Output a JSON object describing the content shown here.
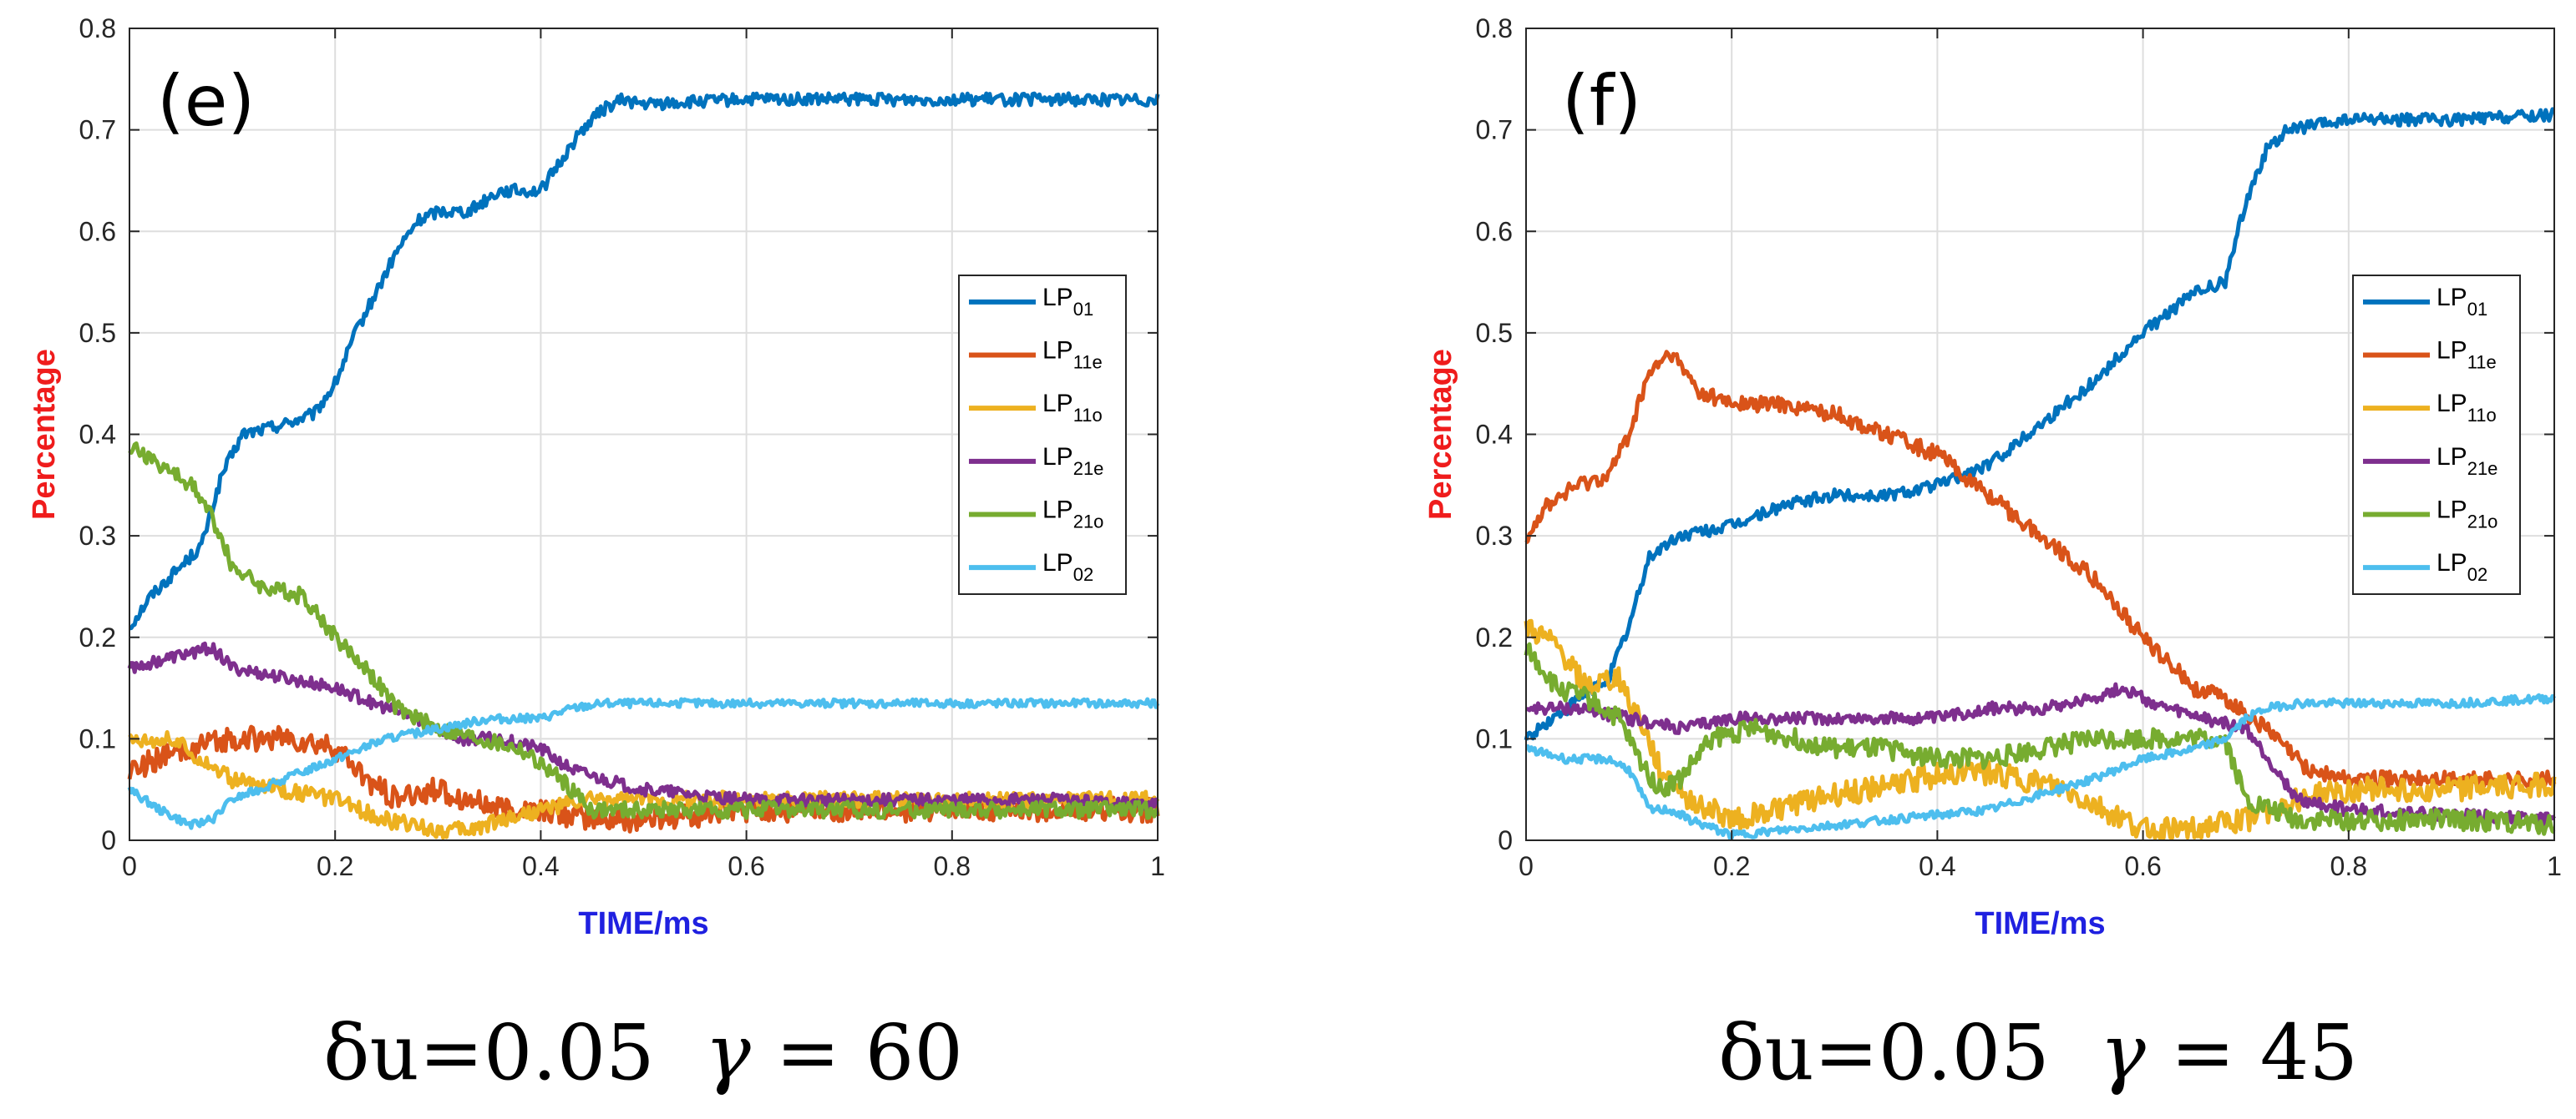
{
  "figure_title": "",
  "chart_data": [
    {
      "type": "line",
      "panel_label": "(e)",
      "xlabel": "TIME/ms",
      "ylabel": "Percentage",
      "xlabel_color": "#1f20e0",
      "ylabel_color": "#ef1c1c",
      "xlim": [
        0,
        1
      ],
      "ylim": [
        0,
        0.8
      ],
      "x_ticks": [
        0,
        0.2,
        0.4,
        0.6,
        0.8,
        1
      ],
      "x_tick_labels": [
        "0",
        "0.2",
        "0.4",
        "0.6",
        "0.8",
        "1"
      ],
      "y_ticks": [
        0,
        0.1,
        0.2,
        0.3,
        0.4,
        0.5,
        0.6,
        0.7,
        0.8
      ],
      "y_tick_labels": [
        "0",
        "0.1",
        "0.2",
        "0.3",
        "0.4",
        "0.5",
        "0.6",
        "0.7",
        "0.8"
      ],
      "grid": true,
      "legend_position": "right-middle",
      "caption": {
        "prefix": "δu=0.05",
        "gamma": "γ",
        "equals": "=",
        "value": "60"
      },
      "series": [
        {
          "name": "LP",
          "sub": "01",
          "color": "#0072bd",
          "x": [
            0,
            0.02,
            0.05,
            0.07,
            0.09,
            0.11,
            0.15,
            0.18,
            0.2,
            0.22,
            0.24,
            0.26,
            0.28,
            0.3,
            0.33,
            0.36,
            0.38,
            0.4,
            0.42,
            0.44,
            0.46,
            0.48,
            0.5,
            0.6,
            0.7,
            0.8,
            0.9,
            1
          ],
          "y": [
            0.21,
            0.24,
            0.27,
            0.29,
            0.36,
            0.4,
            0.41,
            0.42,
            0.45,
            0.5,
            0.54,
            0.58,
            0.61,
            0.62,
            0.62,
            0.64,
            0.64,
            0.64,
            0.67,
            0.7,
            0.72,
            0.73,
            0.725,
            0.73,
            0.73,
            0.73,
            0.73,
            0.73
          ],
          "noise": 0.006
        },
        {
          "name": "LP",
          "sub": "11e",
          "color": "#d95319",
          "x": [
            0,
            0.03,
            0.06,
            0.1,
            0.15,
            0.2,
            0.23,
            0.26,
            0.3,
            0.33,
            0.36,
            0.4,
            0.45,
            0.5,
            0.6,
            0.7,
            0.8,
            0.9,
            1
          ],
          "y": [
            0.07,
            0.08,
            0.09,
            0.1,
            0.1,
            0.09,
            0.06,
            0.04,
            0.05,
            0.04,
            0.03,
            0.03,
            0.02,
            0.02,
            0.03,
            0.03,
            0.03,
            0.03,
            0.03
          ],
          "noise": 0.012
        },
        {
          "name": "LP",
          "sub": "11o",
          "color": "#edb120",
          "x": [
            0,
            0.04,
            0.07,
            0.1,
            0.15,
            0.2,
            0.25,
            0.3,
            0.33,
            0.36,
            0.4,
            0.45,
            0.5,
            0.6,
            0.7,
            0.8,
            0.9,
            1
          ],
          "y": [
            0.1,
            0.1,
            0.08,
            0.06,
            0.05,
            0.04,
            0.02,
            0.01,
            0.01,
            0.02,
            0.03,
            0.04,
            0.04,
            0.04,
            0.04,
            0.04,
            0.04,
            0.04
          ],
          "noise": 0.008
        },
        {
          "name": "LP",
          "sub": "21e",
          "color": "#7e2f8e",
          "x": [
            0,
            0.04,
            0.08,
            0.1,
            0.15,
            0.2,
            0.25,
            0.28,
            0.32,
            0.36,
            0.4,
            0.43,
            0.46,
            0.5,
            0.6,
            0.7,
            0.8,
            0.9,
            1
          ],
          "y": [
            0.17,
            0.18,
            0.19,
            0.17,
            0.16,
            0.15,
            0.13,
            0.12,
            0.1,
            0.1,
            0.09,
            0.07,
            0.06,
            0.05,
            0.04,
            0.04,
            0.04,
            0.04,
            0.035
          ],
          "noise": 0.006
        },
        {
          "name": "LP",
          "sub": "21o",
          "color": "#77ac30",
          "x": [
            0,
            0.03,
            0.06,
            0.08,
            0.1,
            0.13,
            0.17,
            0.2,
            0.23,
            0.26,
            0.3,
            0.34,
            0.38,
            0.42,
            0.45,
            0.5,
            0.6,
            0.7,
            0.8,
            0.9,
            1
          ],
          "y": [
            0.39,
            0.37,
            0.35,
            0.32,
            0.27,
            0.25,
            0.24,
            0.2,
            0.17,
            0.13,
            0.11,
            0.1,
            0.09,
            0.06,
            0.03,
            0.03,
            0.03,
            0.03,
            0.03,
            0.03,
            0.03
          ],
          "noise": 0.008
        },
        {
          "name": "LP",
          "sub": "02",
          "color": "#4dbeee",
          "x": [
            0,
            0.03,
            0.06,
            0.08,
            0.1,
            0.15,
            0.2,
            0.25,
            0.3,
            0.35,
            0.4,
            0.43,
            0.46,
            0.5,
            0.6,
            0.7,
            0.8,
            0.9,
            1
          ],
          "y": [
            0.05,
            0.03,
            0.015,
            0.02,
            0.04,
            0.06,
            0.08,
            0.1,
            0.11,
            0.12,
            0.12,
            0.13,
            0.135,
            0.135,
            0.135,
            0.135,
            0.135,
            0.135,
            0.135
          ],
          "noise": 0.004
        }
      ]
    },
    {
      "type": "line",
      "panel_label": "(f)",
      "xlabel": "TIME/ms",
      "ylabel": "Percentage",
      "xlabel_color": "#1f20e0",
      "ylabel_color": "#ef1c1c",
      "xlim": [
        0,
        1
      ],
      "ylim": [
        0,
        0.8
      ],
      "x_ticks": [
        0,
        0.2,
        0.4,
        0.6,
        0.8,
        1
      ],
      "x_tick_labels": [
        "0",
        "0.2",
        "0.4",
        "0.6",
        "0.8",
        "1"
      ],
      "y_ticks": [
        0,
        0.1,
        0.2,
        0.3,
        0.4,
        0.5,
        0.6,
        0.7,
        0.8
      ],
      "y_tick_labels": [
        "0",
        "0.1",
        "0.2",
        "0.3",
        "0.4",
        "0.5",
        "0.6",
        "0.7",
        "0.8"
      ],
      "grid": true,
      "legend_position": "right-middle",
      "caption": {
        "prefix": "δu=0.05",
        "gamma": "γ",
        "equals": "=",
        "value": "45"
      },
      "series": [
        {
          "name": "LP",
          "sub": "01",
          "color": "#0072bd",
          "x": [
            0,
            0.04,
            0.08,
            0.1,
            0.12,
            0.15,
            0.2,
            0.25,
            0.3,
            0.35,
            0.4,
            0.45,
            0.5,
            0.55,
            0.6,
            0.65,
            0.68,
            0.7,
            0.72,
            0.74,
            0.8,
            0.9,
            1
          ],
          "y": [
            0.1,
            0.13,
            0.16,
            0.21,
            0.28,
            0.3,
            0.31,
            0.33,
            0.34,
            0.34,
            0.35,
            0.37,
            0.41,
            0.45,
            0.5,
            0.54,
            0.55,
            0.63,
            0.68,
            0.7,
            0.71,
            0.71,
            0.715
          ],
          "noise": 0.006
        },
        {
          "name": "LP",
          "sub": "11e",
          "color": "#d95319",
          "x": [
            0,
            0.02,
            0.05,
            0.08,
            0.1,
            0.12,
            0.14,
            0.17,
            0.2,
            0.25,
            0.3,
            0.35,
            0.4,
            0.45,
            0.5,
            0.55,
            0.6,
            0.65,
            0.68,
            0.72,
            0.76,
            0.8,
            0.9,
            1
          ],
          "y": [
            0.3,
            0.33,
            0.35,
            0.36,
            0.4,
            0.46,
            0.48,
            0.44,
            0.43,
            0.43,
            0.42,
            0.4,
            0.38,
            0.34,
            0.3,
            0.26,
            0.2,
            0.15,
            0.14,
            0.11,
            0.07,
            0.06,
            0.06,
            0.06
          ],
          "noise": 0.008
        },
        {
          "name": "LP",
          "sub": "11o",
          "color": "#edb120",
          "x": [
            0,
            0.03,
            0.06,
            0.09,
            0.11,
            0.13,
            0.16,
            0.2,
            0.24,
            0.28,
            0.33,
            0.38,
            0.43,
            0.48,
            0.52,
            0.56,
            0.6,
            0.65,
            0.7,
            0.75,
            0.8,
            0.9,
            1
          ],
          "y": [
            0.21,
            0.19,
            0.15,
            0.16,
            0.12,
            0.07,
            0.04,
            0.02,
            0.03,
            0.04,
            0.05,
            0.06,
            0.07,
            0.06,
            0.05,
            0.03,
            0.01,
            0.01,
            0.02,
            0.04,
            0.05,
            0.05,
            0.055
          ],
          "noise": 0.012
        },
        {
          "name": "LP",
          "sub": "21e",
          "color": "#7e2f8e",
          "x": [
            0,
            0.05,
            0.1,
            0.15,
            0.2,
            0.25,
            0.3,
            0.35,
            0.4,
            0.45,
            0.5,
            0.55,
            0.58,
            0.62,
            0.66,
            0.7,
            0.75,
            0.8,
            0.9,
            1
          ],
          "y": [
            0.13,
            0.13,
            0.12,
            0.11,
            0.12,
            0.12,
            0.12,
            0.12,
            0.12,
            0.13,
            0.13,
            0.14,
            0.15,
            0.13,
            0.12,
            0.11,
            0.04,
            0.03,
            0.025,
            0.02
          ],
          "noise": 0.006
        },
        {
          "name": "LP",
          "sub": "21o",
          "color": "#77ac30",
          "x": [
            0,
            0.03,
            0.06,
            0.09,
            0.11,
            0.13,
            0.15,
            0.18,
            0.22,
            0.26,
            0.3,
            0.35,
            0.4,
            0.45,
            0.5,
            0.55,
            0.6,
            0.65,
            0.68,
            0.7,
            0.75,
            0.8,
            0.9,
            1
          ],
          "y": [
            0.19,
            0.15,
            0.14,
            0.12,
            0.08,
            0.05,
            0.06,
            0.1,
            0.11,
            0.1,
            0.09,
            0.09,
            0.08,
            0.08,
            0.09,
            0.1,
            0.1,
            0.1,
            0.1,
            0.04,
            0.02,
            0.02,
            0.02,
            0.015
          ],
          "noise": 0.01
        },
        {
          "name": "LP",
          "sub": "02",
          "color": "#4dbeee",
          "x": [
            0,
            0.04,
            0.08,
            0.1,
            0.12,
            0.14,
            0.16,
            0.2,
            0.25,
            0.3,
            0.35,
            0.4,
            0.45,
            0.5,
            0.55,
            0.6,
            0.65,
            0.68,
            0.7,
            0.72,
            0.75,
            0.8,
            0.9,
            1
          ],
          "y": [
            0.09,
            0.08,
            0.08,
            0.07,
            0.03,
            0.03,
            0.02,
            0.005,
            0.01,
            0.015,
            0.02,
            0.025,
            0.03,
            0.045,
            0.06,
            0.08,
            0.09,
            0.1,
            0.12,
            0.13,
            0.135,
            0.135,
            0.135,
            0.14
          ],
          "noise": 0.004
        }
      ]
    }
  ]
}
